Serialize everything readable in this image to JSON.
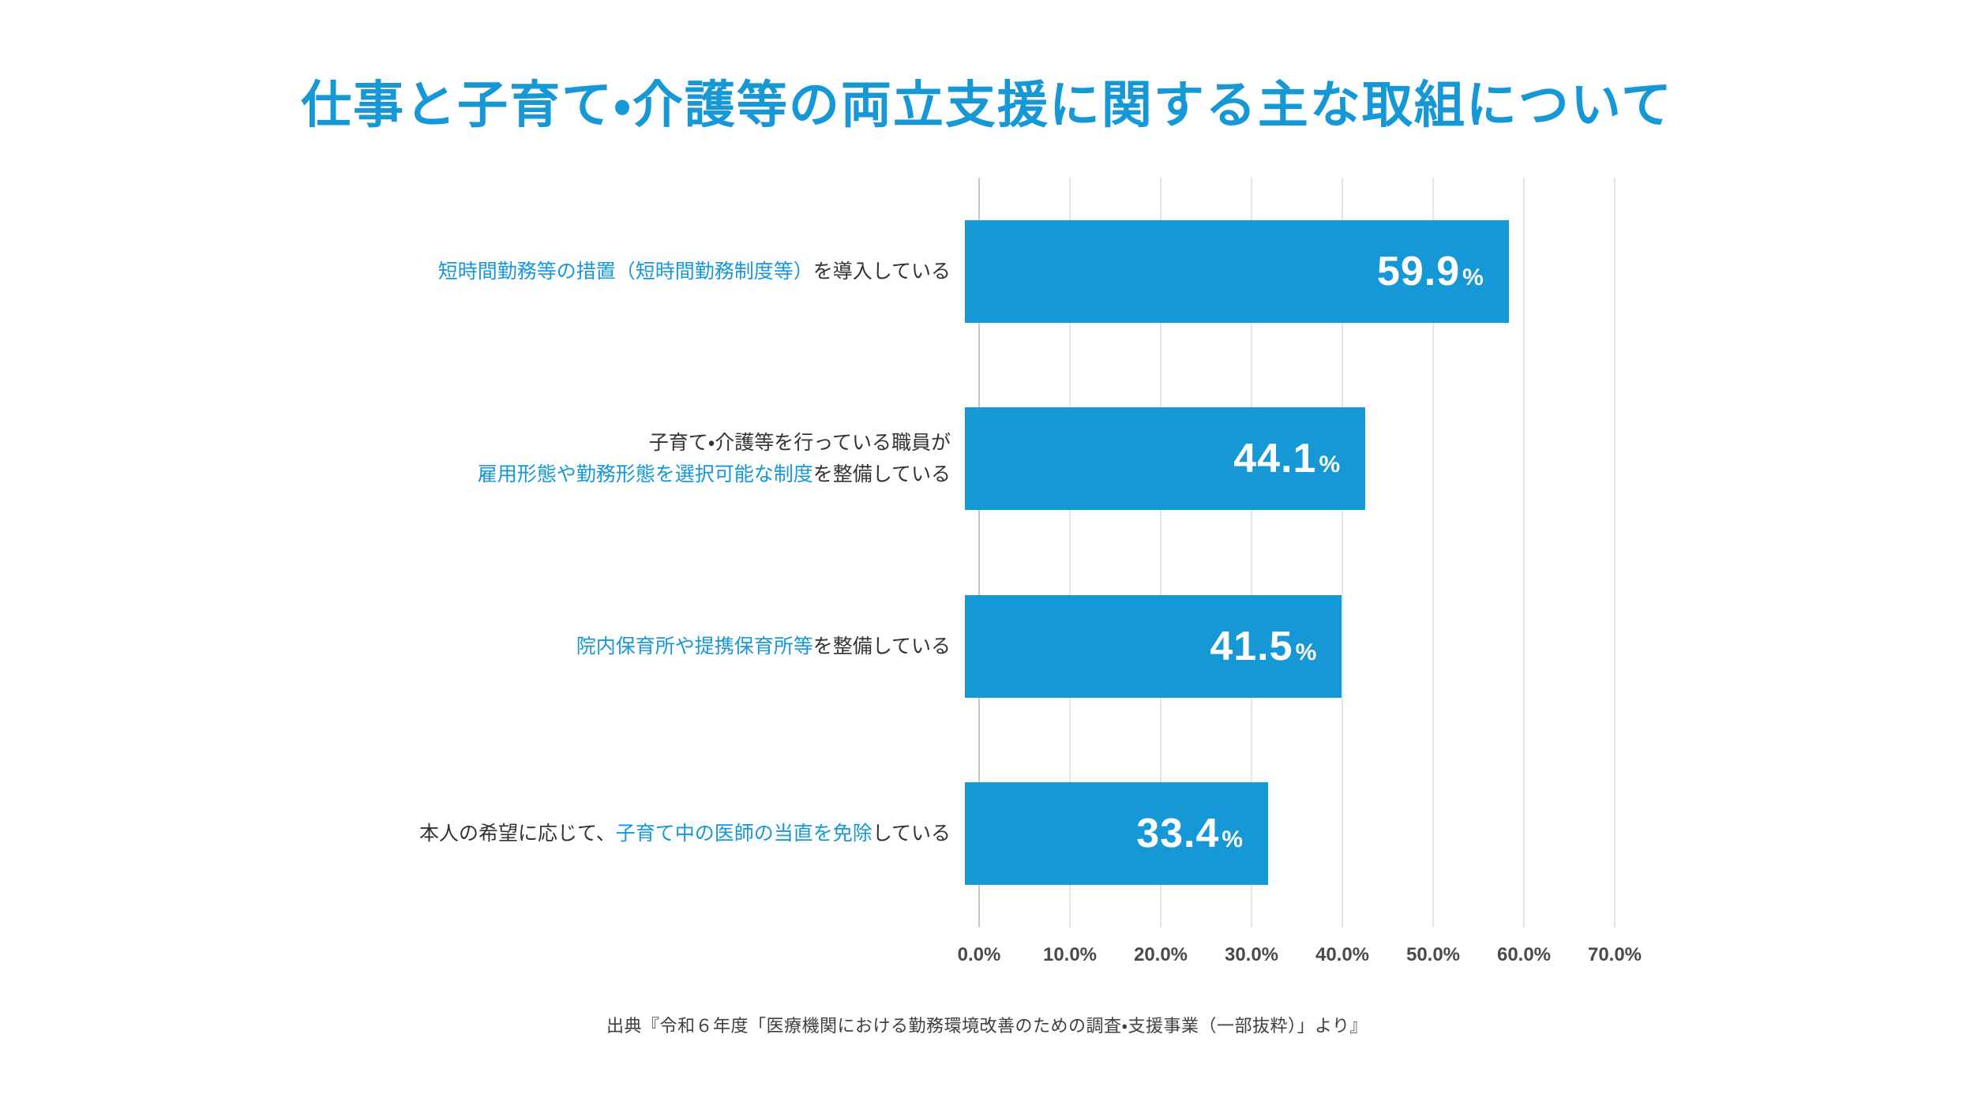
{
  "title": "仕事と子育て・介護等の両立支援に関する主な取組について",
  "source": "出典『令和６年度「医療機関における勤務環境改善のための調査・支援事業（一部抜粋）」より』",
  "colors": {
    "accent": "#1798d6",
    "bar": "#1798d6",
    "text": "#333333",
    "tick": "#4a4a4a",
    "grid": "#e5e5e5",
    "grid_first": "#c6c6c6",
    "value": "#ffffff",
    "background": "#ffffff"
  },
  "chart_data": {
    "type": "bar",
    "orientation": "horizontal",
    "title": "仕事と子育て・介護等の両立支援に関する主な取組について",
    "xlabel": "",
    "ylabel": "",
    "xlim": [
      0,
      70
    ],
    "grid": true,
    "x_ticks": [
      "0.0%",
      "10.0%",
      "20.0%",
      "30.0%",
      "40.0%",
      "50.0%",
      "60.0%",
      "70.0%"
    ],
    "x_tick_values": [
      0,
      10,
      20,
      30,
      40,
      50,
      60,
      70
    ],
    "categories": [
      "短時間勤務等の措置（短時間勤務制度等）を導入している",
      "子育て・介護等を行っている職員が雇用形態や勤務形態を選択可能な制度を整備している",
      "院内保育所や提携保育所等を整備している",
      "本人の希望に応じて、子育て中の医師の当直を免除している"
    ],
    "category_segments": [
      [
        [
          {
            "text": "短時間勤務等の措置（短時間勤務制度等）",
            "style": "accent"
          },
          {
            "text": "を導入している",
            "style": "plain"
          }
        ]
      ],
      [
        [
          {
            "text": "子育て・介護等を行っている職員が",
            "style": "plain"
          }
        ],
        [
          {
            "text": "雇用形態や勤務形態を選択可能な制度",
            "style": "accent"
          },
          {
            "text": "を整備している",
            "style": "plain"
          }
        ]
      ],
      [
        [
          {
            "text": "院内保育所や提携保育所等",
            "style": "accent"
          },
          {
            "text": "を整備している",
            "style": "plain"
          }
        ]
      ],
      [
        [
          {
            "text": "本人の希望に応じて、",
            "style": "plain"
          },
          {
            "text": "子育て中の医師の当直を免除",
            "style": "accent"
          },
          {
            "text": "している",
            "style": "plain"
          }
        ]
      ]
    ],
    "values": [
      59.9,
      44.1,
      41.5,
      33.4
    ],
    "value_labels": [
      "59.9",
      "44.1",
      "41.5",
      "33.4"
    ],
    "value_suffix": "%",
    "legend": false
  }
}
